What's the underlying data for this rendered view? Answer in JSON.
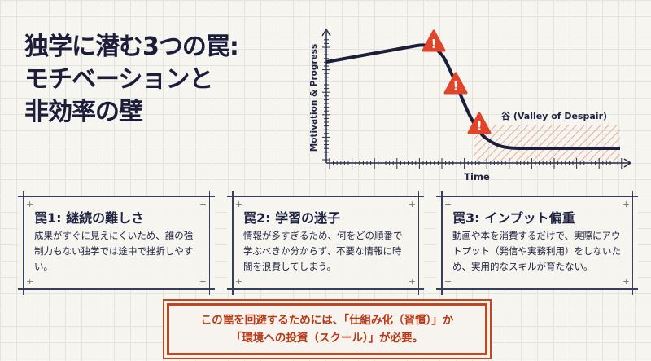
{
  "title": [
    "独学に潜む3つの罠:",
    "モチベーションと",
    "非効率の壁"
  ],
  "chart": {
    "ylabel": "Motivation & Progress",
    "xlabel": "Time",
    "valley_label": "谷 (Valley of Despair)",
    "warning_icon": "warning-triangle",
    "accent": "#e0442a"
  },
  "cards": [
    {
      "title": "罠1: 継続の難しさ",
      "text": "成果がすぐに見えにくいため、誰の強制力もない独学では途中で挫折しやすい。"
    },
    {
      "title": "罠2: 学習の迷子",
      "text": "情報が多すぎるため、何をどの順番で学ぶべきか分からず、不要な情報に時間を浪費してしまう。"
    },
    {
      "title": "罠3: インプット偏重",
      "text": "動画や本を消費するだけで、実際にアウトプット（発信や実務利用）をしないため、実用的なスキルが育たない。"
    }
  ],
  "callout": {
    "line1": "この罠を回避するためには、「仕組み化（習慣）」か",
    "line2": "「環境への投資（スクール）」が必要。",
    "color": "#c2461f"
  }
}
